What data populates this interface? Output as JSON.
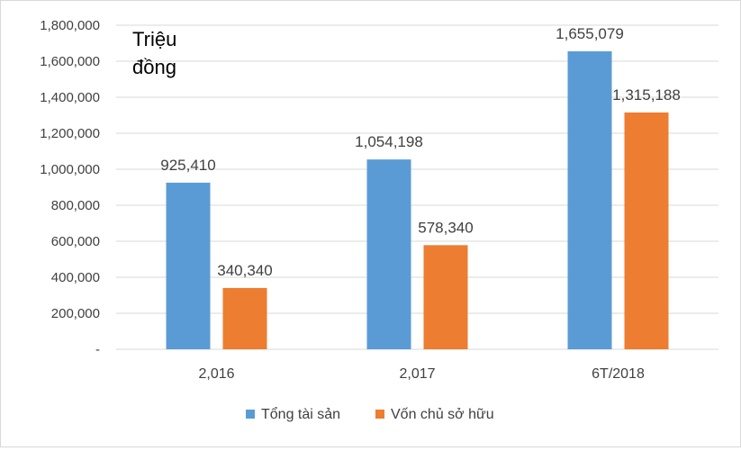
{
  "chart_data": {
    "type": "bar",
    "title": "",
    "unit_label": [
      "Triệu",
      "đồng"
    ],
    "xlabel": "",
    "ylabel": "",
    "categories": [
      "2,016",
      "2,017",
      "6T/2018"
    ],
    "series": [
      {
        "name": "Tổng tài sản",
        "color": "#5b9bd5",
        "values": [
          925410,
          1054198,
          1655079
        ],
        "labels": [
          "925,410",
          "1,054,198",
          "1,655,079"
        ]
      },
      {
        "name": "Vốn chủ sở hữu",
        "color": "#ed7d31",
        "values": [
          340340,
          578340,
          1315188
        ],
        "labels": [
          "340,340",
          "578,340",
          "1,315,188"
        ]
      }
    ],
    "ylim": [
      0,
      1800000
    ],
    "yticks": [
      0,
      200000,
      400000,
      600000,
      800000,
      1000000,
      1200000,
      1400000,
      1600000,
      1800000
    ],
    "ytick_labels": [
      "-",
      "200,000",
      "400,000",
      "600,000",
      "800,000",
      "1,000,000",
      "1,200,000",
      "1,400,000",
      "1,600,000",
      "1,800,000"
    ],
    "grid": true,
    "legend_position": "bottom"
  }
}
